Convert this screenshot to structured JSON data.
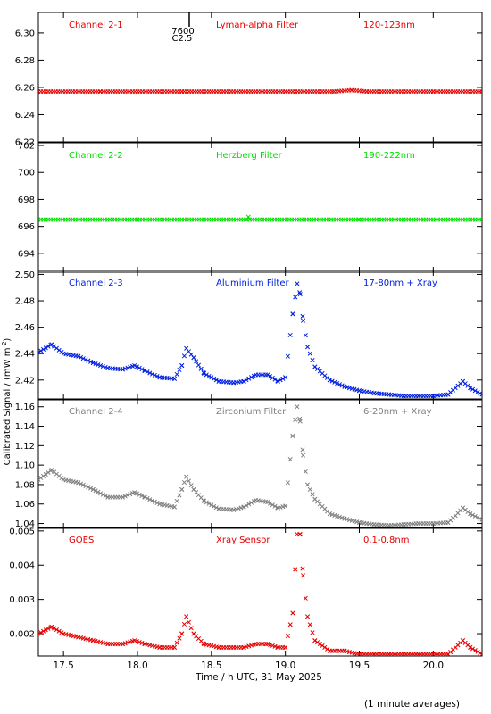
{
  "figure": {
    "ylabel": "Calibrated Signal / (mW m",
    "ylabel_sup": "-2",
    "ylabel_close": ")",
    "xlabel": "Time / h UTC, 31 May 2025",
    "footnote": "(1 minute averages)",
    "flare_marker": {
      "label_top": "7600",
      "label_bottom": "C2.5",
      "time": 18.35
    }
  },
  "chart_data": [
    {
      "type": "scatter",
      "channel": "Channel 2-1",
      "filter": "Lyman-alpha Filter",
      "band": "120-123nm",
      "color": "#e60000",
      "marker": "x",
      "xlim": [
        17.33,
        20.33
      ],
      "ylim": [
        6.22,
        6.315
      ],
      "yticks": [
        6.22,
        6.24,
        6.26,
        6.28,
        6.3
      ],
      "ytick_labels": [
        "6.22",
        "6.24",
        "6.26",
        "6.28",
        "6.30"
      ],
      "series": [
        {
          "x": [
            17.33,
            17.75,
            18.3,
            19.0,
            19.33,
            19.45,
            19.55,
            20.0,
            20.33
          ],
          "y": [
            6.257,
            6.257,
            6.257,
            6.257,
            6.257,
            6.258,
            6.257,
            6.257,
            6.257
          ]
        }
      ]
    },
    {
      "type": "scatter",
      "channel": "Channel 2-2",
      "filter": "Herzberg Filter",
      "band": "190-222nm",
      "color": "#00e000",
      "marker": "x",
      "xlim": [
        17.33,
        20.33
      ],
      "ylim": [
        692.6,
        702.2
      ],
      "yticks": [
        694,
        696,
        698,
        700,
        702
      ],
      "ytick_labels": [
        "694",
        "696",
        "698",
        "700",
        "702"
      ],
      "series": [
        {
          "x": [
            17.33,
            18.0,
            18.74,
            18.75,
            18.76,
            19.5,
            20.33
          ],
          "y": [
            696.5,
            696.5,
            696.5,
            696.7,
            696.5,
            696.5,
            696.5
          ]
        }
      ]
    },
    {
      "type": "scatter",
      "channel": "Channel 2-3",
      "filter": "Aluminium Filter",
      "band": "17-80nm + Xray",
      "color": "#0020e0",
      "marker": "x",
      "xlim": [
        17.33,
        20.33
      ],
      "ylim": [
        2.405,
        2.503
      ],
      "yticks": [
        2.42,
        2.44,
        2.46,
        2.48,
        2.5
      ],
      "ytick_labels": [
        "2.42",
        "2.44",
        "2.46",
        "2.48",
        "2.50"
      ],
      "series": [
        {
          "x": [
            17.33,
            17.42,
            17.5,
            17.6,
            17.7,
            17.8,
            17.9,
            17.98,
            18.05,
            18.15,
            18.25,
            18.3,
            18.33,
            18.38,
            18.45,
            18.55,
            18.65,
            18.72,
            18.8,
            18.88,
            18.95,
            19.0,
            19.05,
            19.08,
            19.1,
            19.12,
            19.15,
            19.2,
            19.3,
            19.4,
            19.5,
            19.6,
            19.7,
            19.8,
            19.9,
            20.0,
            20.1,
            20.15,
            20.2,
            20.25,
            20.33
          ],
          "y": [
            2.441,
            2.447,
            2.44,
            2.438,
            2.433,
            2.429,
            2.428,
            2.431,
            2.427,
            2.422,
            2.421,
            2.431,
            2.444,
            2.437,
            2.425,
            2.419,
            2.418,
            2.419,
            2.424,
            2.424,
            2.419,
            2.422,
            2.47,
            2.493,
            2.485,
            2.465,
            2.445,
            2.43,
            2.42,
            2.415,
            2.412,
            2.41,
            2.409,
            2.408,
            2.408,
            2.408,
            2.409,
            2.414,
            2.419,
            2.414,
            2.409
          ]
        }
      ]
    },
    {
      "type": "scatter",
      "channel": "Channel 2-4",
      "filter": "Zirconium Filter",
      "band": "6-20nm + Xray",
      "color": "#808080",
      "marker": "x",
      "xlim": [
        17.33,
        20.33
      ],
      "ylim": [
        1.035,
        1.168
      ],
      "yticks": [
        1.04,
        1.06,
        1.08,
        1.1,
        1.12,
        1.14,
        1.16
      ],
      "ytick_labels": [
        "1.04",
        "1.06",
        "1.08",
        "1.10",
        "1.12",
        "1.14",
        "1.16"
      ],
      "series": [
        {
          "x": [
            17.33,
            17.42,
            17.5,
            17.6,
            17.7,
            17.8,
            17.9,
            17.98,
            18.05,
            18.15,
            18.25,
            18.3,
            18.33,
            18.38,
            18.45,
            18.55,
            18.65,
            18.72,
            18.8,
            18.88,
            18.95,
            19.0,
            19.05,
            19.08,
            19.1,
            19.12,
            19.15,
            19.2,
            19.3,
            19.4,
            19.5,
            19.6,
            19.7,
            19.8,
            19.9,
            20.0,
            20.1,
            20.15,
            20.2,
            20.25,
            20.33
          ],
          "y": [
            1.085,
            1.095,
            1.085,
            1.082,
            1.075,
            1.067,
            1.067,
            1.072,
            1.067,
            1.06,
            1.057,
            1.075,
            1.088,
            1.075,
            1.063,
            1.055,
            1.054,
            1.057,
            1.064,
            1.062,
            1.056,
            1.058,
            1.13,
            1.16,
            1.145,
            1.11,
            1.08,
            1.065,
            1.05,
            1.045,
            1.041,
            1.039,
            1.038,
            1.039,
            1.04,
            1.04,
            1.041,
            1.048,
            1.056,
            1.05,
            1.044
          ]
        }
      ]
    },
    {
      "type": "scatter",
      "channel": "GOES",
      "filter": "Xray Sensor",
      "band": "0.1-0.8nm",
      "color": "#e60000",
      "marker": "x",
      "xlim": [
        17.33,
        20.33
      ],
      "ylim": [
        0.00135,
        0.0051
      ],
      "yticks": [
        0.002,
        0.003,
        0.004,
        0.005
      ],
      "ytick_labels": [
        "0.002",
        "0.003",
        "0.004",
        "0.005"
      ],
      "series": [
        {
          "x": [
            17.33,
            17.42,
            17.5,
            17.6,
            17.7,
            17.8,
            17.9,
            17.98,
            18.05,
            18.15,
            18.25,
            18.3,
            18.33,
            18.38,
            18.45,
            18.55,
            18.65,
            18.72,
            18.8,
            18.88,
            18.95,
            19.0,
            19.05,
            19.08,
            19.1,
            19.12,
            19.15,
            19.2,
            19.3,
            19.4,
            19.5,
            19.6,
            19.7,
            19.8,
            19.9,
            20.0,
            20.1,
            20.15,
            20.2,
            20.25,
            20.33
          ],
          "y": [
            0.002,
            0.0022,
            0.002,
            0.0019,
            0.0018,
            0.0017,
            0.0017,
            0.0018,
            0.0017,
            0.0016,
            0.0016,
            0.002,
            0.0025,
            0.002,
            0.0017,
            0.0016,
            0.0016,
            0.0016,
            0.0017,
            0.0017,
            0.0016,
            0.0016,
            0.0026,
            0.0049,
            0.0049,
            0.0037,
            0.0025,
            0.0018,
            0.0015,
            0.0015,
            0.0014,
            0.0014,
            0.0014,
            0.0014,
            0.0014,
            0.0014,
            0.0014,
            0.0016,
            0.0018,
            0.0016,
            0.0014
          ]
        }
      ]
    }
  ],
  "x_axis": {
    "ticks": [
      17.5,
      18.0,
      18.5,
      19.0,
      19.5,
      20.0
    ],
    "tick_labels": [
      "17.5",
      "18.0",
      "18.5",
      "19.0",
      "19.5",
      "20.0"
    ]
  }
}
